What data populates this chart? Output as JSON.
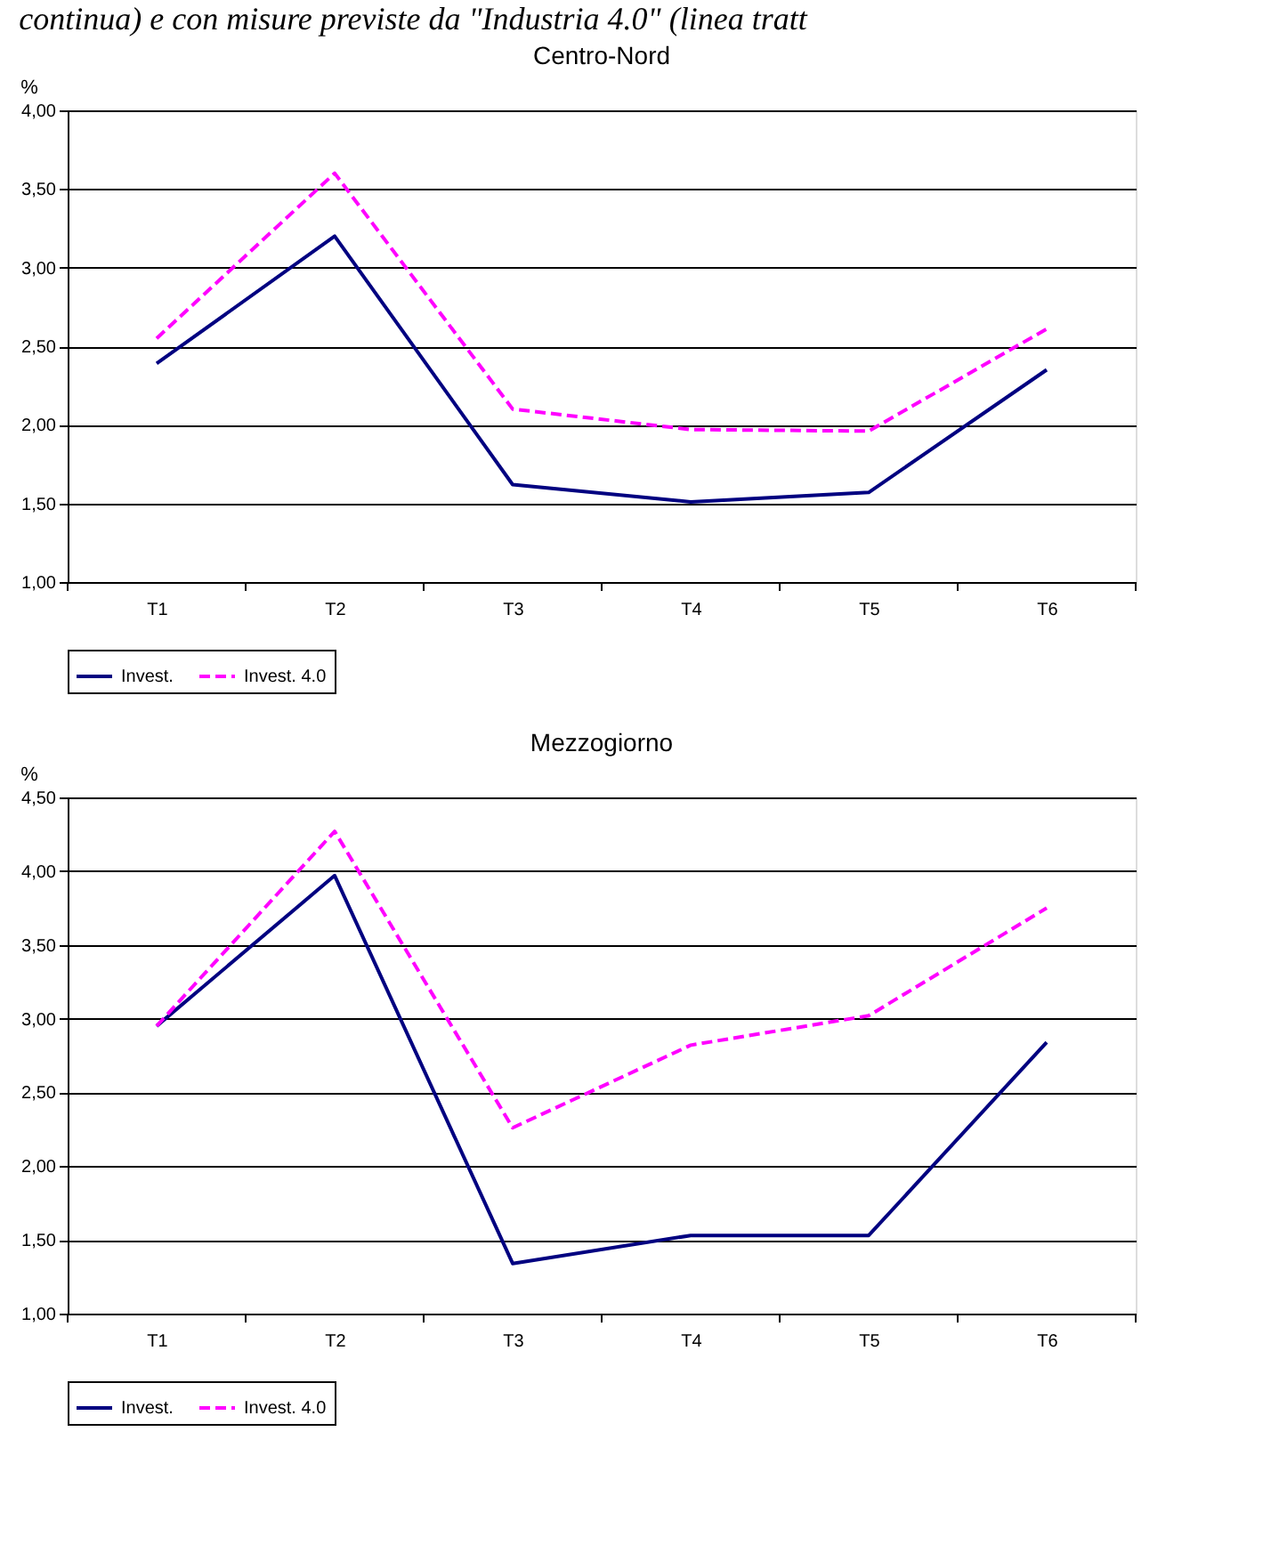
{
  "chart_data": [
    {
      "type": "line",
      "title": "Centro-Nord",
      "ylabel": "%",
      "annotations": [
        "continua) e con misure previste da \"Industria 4.0\" (linea tratt"
      ],
      "categories": [
        "T1",
        "T2",
        "T3",
        "T4",
        "T5",
        "T6"
      ],
      "series": [
        {
          "name": "Invest.",
          "color": "#000080",
          "line_style": "solid",
          "values": [
            2.39,
            3.2,
            1.62,
            1.51,
            1.57,
            2.35
          ]
        },
        {
          "name": "Invest. 4.0",
          "color": "#ff00ff",
          "line_style": "dashed",
          "values": [
            2.55,
            3.6,
            2.1,
            1.97,
            1.96,
            2.61
          ]
        }
      ],
      "ylim": [
        1,
        4
      ],
      "yticks": [
        {
          "value": 1,
          "label": "1,00"
        },
        {
          "value": 1.5,
          "label": "1,50"
        },
        {
          "value": 2,
          "label": "2,00"
        },
        {
          "value": 2.5,
          "label": "2,50"
        },
        {
          "value": 3,
          "label": "3,00"
        },
        {
          "value": 3.5,
          "label": "3,50"
        },
        {
          "value": 4,
          "label": "4,00"
        }
      ],
      "grid": "y",
      "legend": "bottom",
      "marker": "none"
    },
    {
      "type": "line",
      "title": "Mezzogiorno",
      "ylabel": "%",
      "categories": [
        "T1",
        "T2",
        "T3",
        "T4",
        "T5",
        "T6"
      ],
      "series": [
        {
          "name": "Invest.",
          "color": "#000080",
          "line_style": "solid",
          "values": [
            2.95,
            3.97,
            1.34,
            1.53,
            1.53,
            2.84
          ]
        },
        {
          "name": "Invest. 4.0",
          "color": "#ff00ff",
          "line_style": "dashed",
          "values": [
            2.95,
            4.27,
            2.26,
            2.82,
            3.02,
            3.75
          ]
        }
      ],
      "ylim": [
        1,
        4.5
      ],
      "yticks": [
        {
          "value": 1,
          "label": "1,00"
        },
        {
          "value": 1.5,
          "label": "1,50"
        },
        {
          "value": 2,
          "label": "2,00"
        },
        {
          "value": 2.5,
          "label": "2,50"
        },
        {
          "value": 3,
          "label": "3,00"
        },
        {
          "value": 3.5,
          "label": "3,50"
        },
        {
          "value": 4,
          "label": "4,00"
        },
        {
          "value": 4.5,
          "label": "4,50"
        }
      ],
      "grid": "y",
      "legend": "bottom",
      "marker": "none"
    }
  ]
}
